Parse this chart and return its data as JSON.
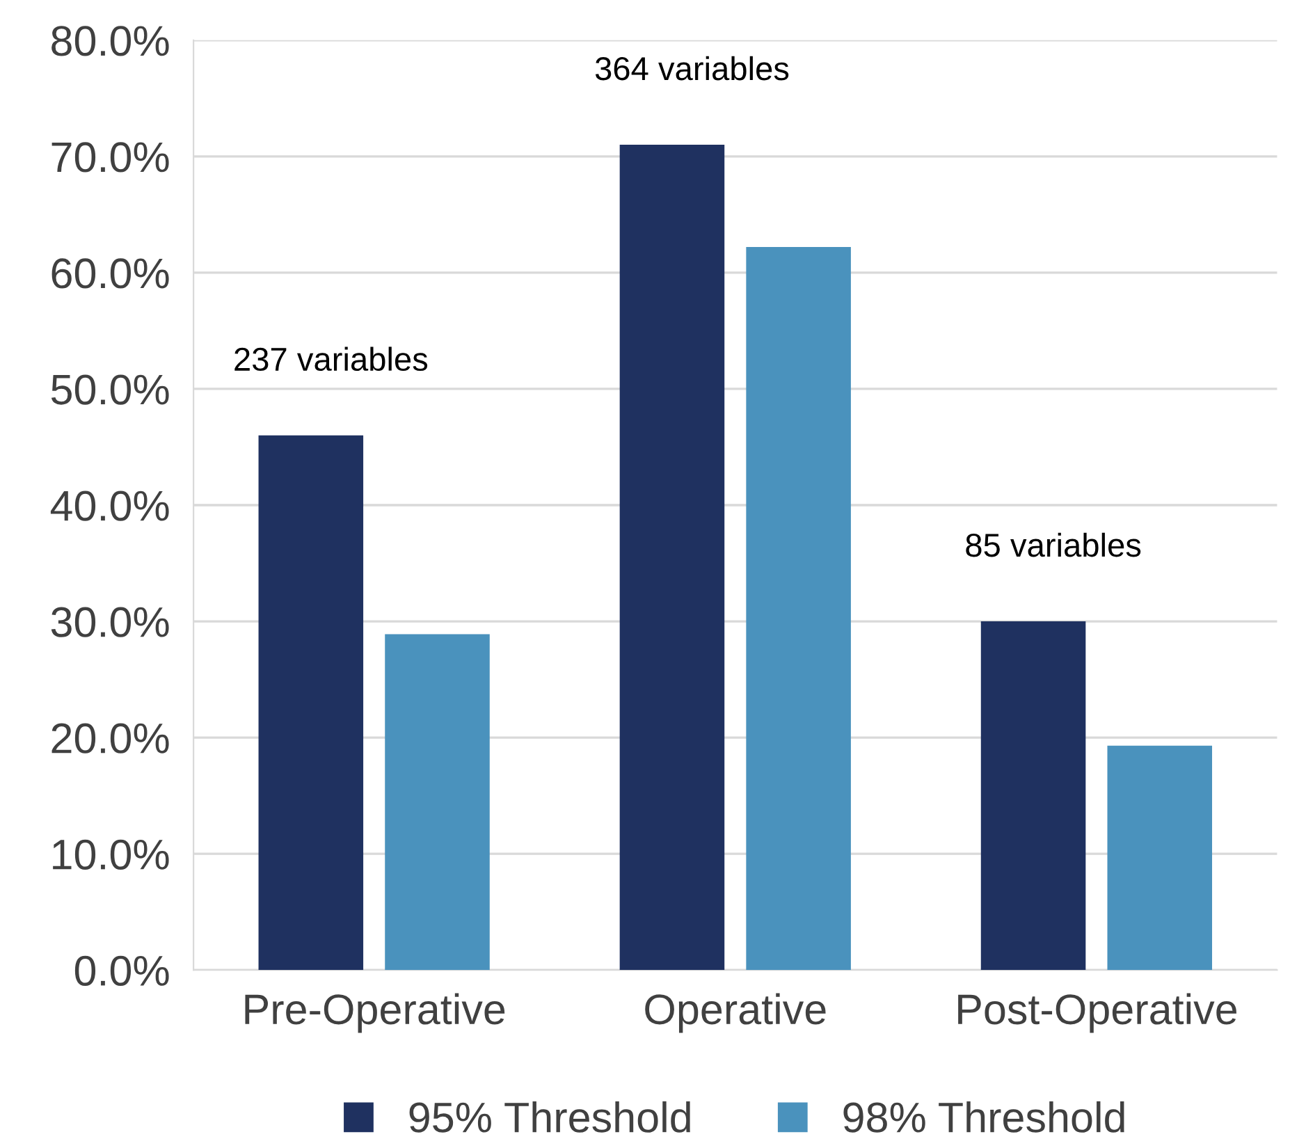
{
  "chart_data": {
    "type": "bar",
    "categories": [
      "Pre-Operative",
      "Operative",
      "Post-Operative"
    ],
    "series": [
      {
        "name": "95% Threshold",
        "color": "#1f3160",
        "values": [
          46.0,
          71.0,
          30.0
        ]
      },
      {
        "name": "98% Threshold",
        "color": "#4a92bd",
        "values": [
          28.9,
          62.2,
          19.3
        ]
      }
    ],
    "ylim": [
      0,
      80
    ],
    "yticks": [
      {
        "value": 0,
        "label": "0.0%"
      },
      {
        "value": 10,
        "label": "10.0%"
      },
      {
        "value": 20,
        "label": "20.0%"
      },
      {
        "value": 30,
        "label": "30.0%"
      },
      {
        "value": 40,
        "label": "40.0%"
      },
      {
        "value": 50,
        "label": "50.0%"
      },
      {
        "value": 60,
        "label": "60.0%"
      },
      {
        "value": 70,
        "label": "70.0%"
      },
      {
        "value": 80,
        "label": "80.0%"
      }
    ],
    "grid": "y",
    "legend": "bottom",
    "annotations": [
      "237 variables",
      "364 variables",
      "85 variables"
    ]
  }
}
